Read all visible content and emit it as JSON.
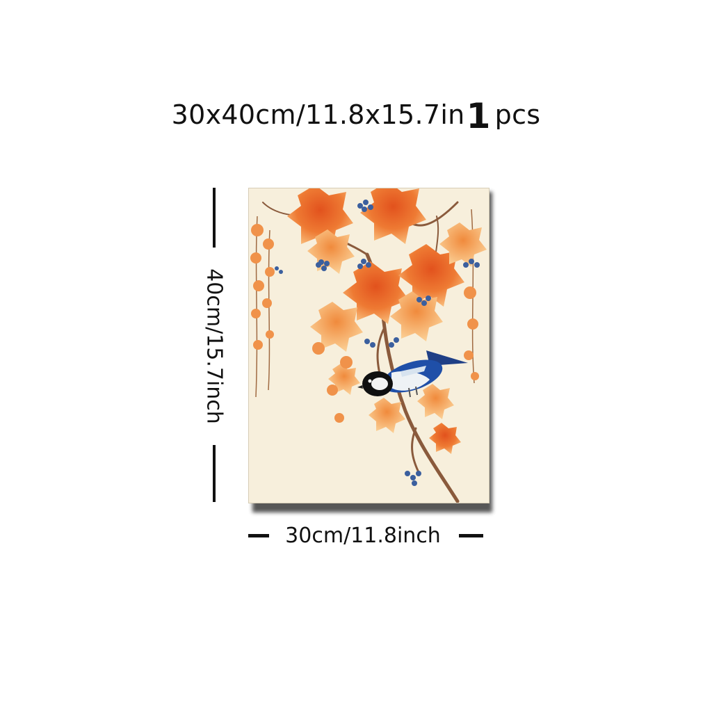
{
  "title": {
    "size_text": "30x40cm/11.8x15.7in",
    "quantity": "1",
    "quantity_unit": "pcs"
  },
  "dimensions": {
    "height_label": "40cm/15.7inch",
    "width_label": "30cm/11.8inch"
  },
  "artwork": {
    "subject": "bird on autumn vine branch",
    "background_color": "#f7efdc",
    "leaf_color": "#e8692a",
    "leaf_light_color": "#f5a35a",
    "berry_color": "#3b5f9e",
    "branch_color": "#8a5a3c",
    "bird_color": "#1f4fa8"
  },
  "colors": {
    "text": "#111111",
    "shadow": "#3a3a3a"
  }
}
